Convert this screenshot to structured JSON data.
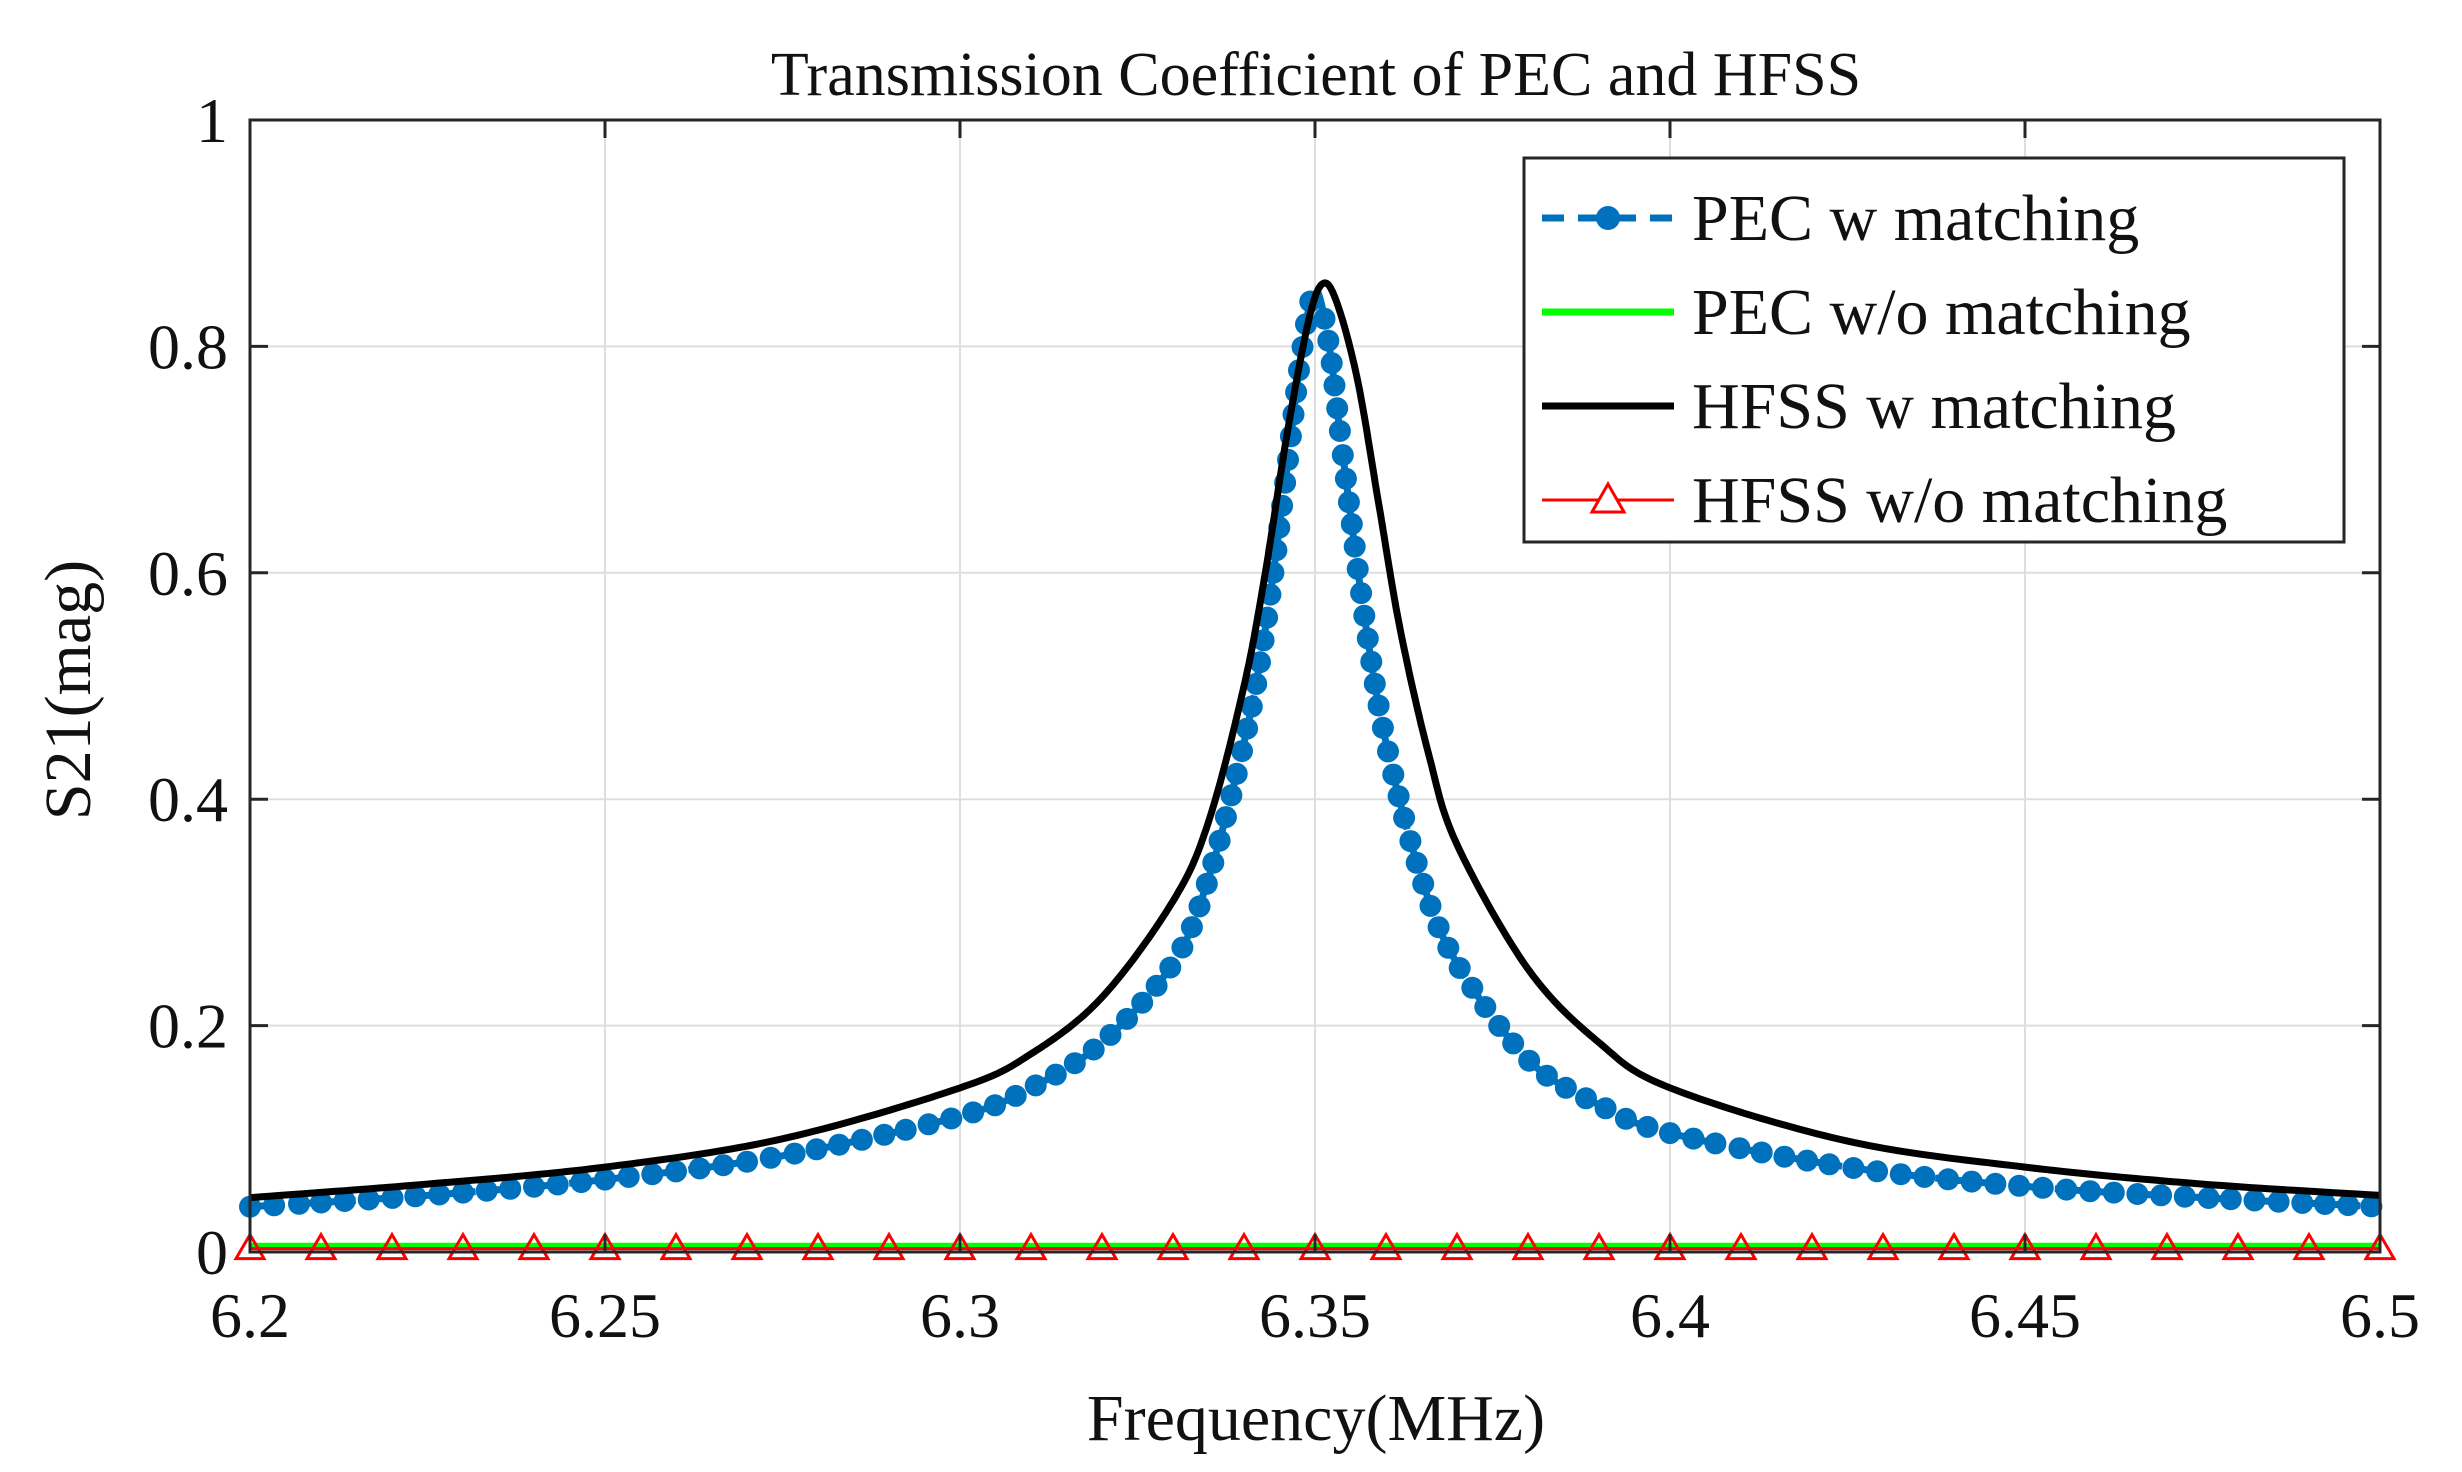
{
  "chart_data": {
    "type": "line",
    "title": "Transmission Coefficient of PEC and HFSS",
    "xlabel": "Frequency(MHz)",
    "ylabel": "S21(mag)",
    "xlim": [
      6.2,
      6.5
    ],
    "ylim": [
      0,
      1
    ],
    "x_ticks": [
      "6.2",
      "6.25",
      "6.3",
      "6.35",
      "6.4",
      "6.45",
      "6.5"
    ],
    "y_ticks": [
      "0",
      "0.2",
      "0.4",
      "0.6",
      "0.8",
      "1"
    ],
    "grid": true,
    "legend_position": "top-right",
    "series": [
      {
        "name": "PEC w matching",
        "color": "#0072BD",
        "line_style": "dashed",
        "marker": "circle",
        "x": [
          6.2,
          6.225,
          6.25,
          6.275,
          6.3,
          6.31,
          6.32,
          6.33,
          6.335,
          6.34,
          6.343,
          6.346,
          6.348,
          6.35,
          6.352,
          6.354,
          6.357,
          6.36,
          6.365,
          6.37,
          6.38,
          6.39,
          6.4,
          6.425,
          6.45,
          6.475,
          6.5
        ],
        "y": [
          0.04,
          0.05,
          0.064,
          0.085,
          0.12,
          0.145,
          0.185,
          0.255,
          0.33,
          0.45,
          0.55,
          0.69,
          0.79,
          0.85,
          0.8,
          0.7,
          0.56,
          0.45,
          0.33,
          0.255,
          0.17,
          0.13,
          0.105,
          0.075,
          0.058,
          0.048,
          0.04
        ]
      },
      {
        "name": "PEC w/o matching",
        "color": "#00FF00",
        "line_style": "solid",
        "marker": "none",
        "x": [
          6.2,
          6.5
        ],
        "y": [
          0.005,
          0.005
        ]
      },
      {
        "name": "HFSS w matching",
        "color": "#000000",
        "line_style": "solid",
        "marker": "none",
        "x": [
          6.2,
          6.225,
          6.25,
          6.275,
          6.3,
          6.31,
          6.32,
          6.33,
          6.335,
          6.34,
          6.343,
          6.346,
          6.349,
          6.351,
          6.353,
          6.356,
          6.359,
          6.362,
          6.366,
          6.37,
          6.38,
          6.39,
          6.4,
          6.425,
          6.45,
          6.475,
          6.5
        ],
        "y": [
          0.048,
          0.06,
          0.075,
          0.1,
          0.145,
          0.175,
          0.225,
          0.31,
          0.38,
          0.5,
          0.6,
          0.72,
          0.82,
          0.855,
          0.84,
          0.77,
          0.66,
          0.55,
          0.44,
          0.36,
          0.25,
          0.185,
          0.145,
          0.098,
          0.075,
          0.06,
          0.05
        ]
      },
      {
        "name": "HFSS w/o matching",
        "color": "#FF0000",
        "line_style": "solid",
        "marker": "triangle",
        "x": [
          6.2,
          6.21,
          6.22,
          6.23,
          6.24,
          6.25,
          6.26,
          6.27,
          6.28,
          6.29,
          6.3,
          6.31,
          6.32,
          6.33,
          6.34,
          6.35,
          6.36,
          6.37,
          6.38,
          6.39,
          6.4,
          6.41,
          6.42,
          6.43,
          6.44,
          6.45,
          6.46,
          6.47,
          6.48,
          6.49,
          6.5
        ],
        "y": [
          0.003,
          0.003,
          0.003,
          0.003,
          0.003,
          0.003,
          0.003,
          0.003,
          0.003,
          0.003,
          0.003,
          0.003,
          0.003,
          0.003,
          0.003,
          0.003,
          0.003,
          0.003,
          0.003,
          0.003,
          0.003,
          0.003,
          0.003,
          0.003,
          0.003,
          0.003,
          0.003,
          0.003,
          0.003,
          0.003,
          0.003
        ]
      }
    ]
  }
}
